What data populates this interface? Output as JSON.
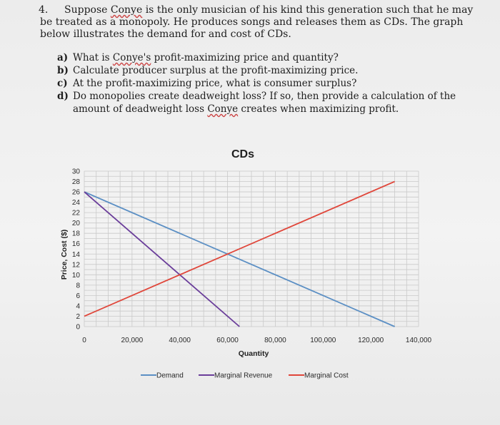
{
  "question": {
    "number": "4.",
    "intro_before": "Suppose ",
    "intro_name": "Conye",
    "intro_after": " is the only musician of his kind this generation such that he may be treated as a monopoly. He produces songs and releases them as CDs. The graph below illustrates the demand for and cost of CDs.",
    "parts": [
      {
        "letter": "a)",
        "before": "What is ",
        "name": "Conye's",
        "after": " profit-maximizing price and quantity?"
      },
      {
        "letter": "b)",
        "before": "Calculate producer surplus at the profit-maximizing price.",
        "name": "",
        "after": ""
      },
      {
        "letter": "c)",
        "before": "At the profit-maximizing price, what is consumer surplus?",
        "name": "",
        "after": ""
      },
      {
        "letter": "d)",
        "before": "Do monopolies create deadweight loss? If so, then provide a calculation of the amount of deadweight loss ",
        "name": "Conye",
        "after": " creates when maximizing profit."
      }
    ]
  },
  "chart_data": {
    "type": "line",
    "title": "CDs",
    "xlabel": "Quantity",
    "ylabel": "Price, Cost ($)",
    "xlim": [
      0,
      140000
    ],
    "ylim": [
      0,
      30
    ],
    "x_ticks": [
      "0",
      "20,000",
      "40,000",
      "60,000",
      "80,000",
      "100,000",
      "120,000",
      "140,000"
    ],
    "y_ticks": [
      "0",
      "2",
      "4",
      "6",
      "8",
      "10",
      "12",
      "14",
      "16",
      "18",
      "20",
      "22",
      "24",
      "26",
      "28",
      "30"
    ],
    "grid": true,
    "legend_position": "bottom",
    "series": [
      {
        "name": "Demand",
        "color": "#5b8fc4",
        "points": [
          [
            0,
            26
          ],
          [
            130000,
            0
          ]
        ]
      },
      {
        "name": "Marginal Revenue",
        "color": "#6a3d9a",
        "points": [
          [
            0,
            26
          ],
          [
            65000,
            0
          ]
        ]
      },
      {
        "name": "Marginal Cost",
        "color": "#e0463a",
        "points": [
          [
            0,
            2
          ],
          [
            130000,
            28
          ]
        ]
      }
    ]
  }
}
